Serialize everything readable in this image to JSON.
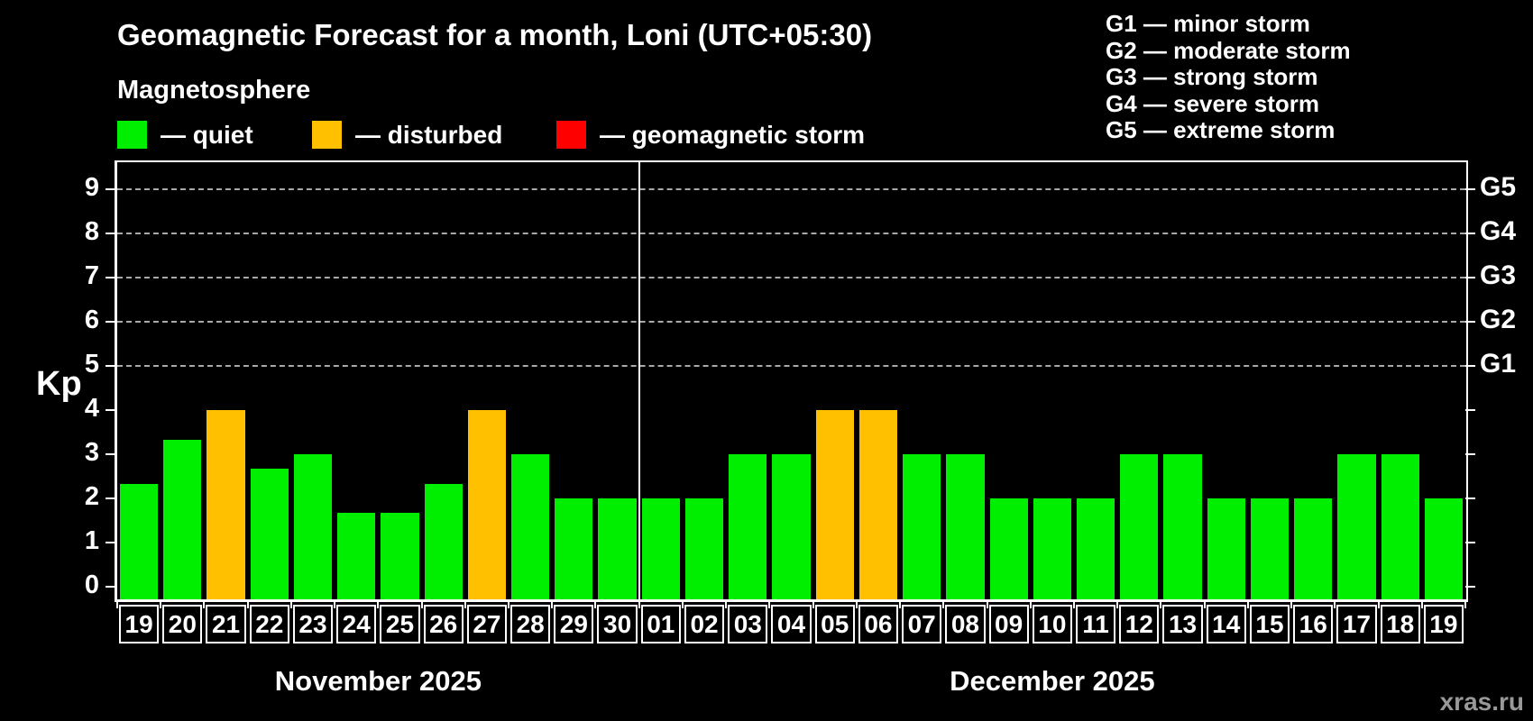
{
  "title": "Geomagnetic Forecast for a month, Loni (UTC+05:30)",
  "magnetosphere": {
    "heading": "Magnetosphere",
    "items": [
      {
        "label": "— quiet",
        "status": "quiet",
        "color": "#00ee00"
      },
      {
        "label": "— disturbed",
        "status": "disturbed",
        "color": "#ffc000"
      },
      {
        "label": "— geomagnetic storm",
        "status": "storm",
        "color": "#ff0000"
      }
    ]
  },
  "storm_scale_legend": {
    "lines": [
      "G1 — minor storm",
      "G2 — moderate storm",
      "G3 — strong storm",
      "G4 — severe storm",
      "G5 — extreme storm"
    ]
  },
  "watermark": "xras.ru",
  "chart_data": {
    "type": "bar",
    "title": "Geomagnetic Forecast for a month, Loni (UTC+05:30)",
    "ylabel": "Kp",
    "ylim": [
      0,
      9.5
    ],
    "yticks": [
      0,
      1,
      2,
      3,
      4,
      5,
      6,
      7,
      8,
      9
    ],
    "grid": "dashed horizontal gridlines at Kp 5-9",
    "legend_position": "top",
    "right_axis": [
      {
        "label": "G1",
        "kp": 5
      },
      {
        "label": "G2",
        "kp": 6
      },
      {
        "label": "G3",
        "kp": 7
      },
      {
        "label": "G4",
        "kp": 8
      },
      {
        "label": "G5",
        "kp": 9
      }
    ],
    "colors": {
      "quiet": "#00ee00",
      "disturbed": "#ffc000",
      "storm": "#ff0000"
    },
    "months": [
      {
        "label": "November 2025",
        "days": [
          {
            "date": "19",
            "kp": 2.33,
            "status": "quiet"
          },
          {
            "date": "20",
            "kp": 3.33,
            "status": "quiet"
          },
          {
            "date": "21",
            "kp": 4.0,
            "status": "disturbed"
          },
          {
            "date": "22",
            "kp": 2.67,
            "status": "quiet"
          },
          {
            "date": "23",
            "kp": 3.0,
            "status": "quiet"
          },
          {
            "date": "24",
            "kp": 1.67,
            "status": "quiet"
          },
          {
            "date": "25",
            "kp": 1.67,
            "status": "quiet"
          },
          {
            "date": "26",
            "kp": 2.33,
            "status": "quiet"
          },
          {
            "date": "27",
            "kp": 4.0,
            "status": "disturbed"
          },
          {
            "date": "28",
            "kp": 3.0,
            "status": "quiet"
          },
          {
            "date": "29",
            "kp": 2.0,
            "status": "quiet"
          },
          {
            "date": "30",
            "kp": 2.0,
            "status": "quiet"
          }
        ]
      },
      {
        "label": "December 2025",
        "days": [
          {
            "date": "01",
            "kp": 2.0,
            "status": "quiet"
          },
          {
            "date": "02",
            "kp": 2.0,
            "status": "quiet"
          },
          {
            "date": "03",
            "kp": 3.0,
            "status": "quiet"
          },
          {
            "date": "04",
            "kp": 3.0,
            "status": "quiet"
          },
          {
            "date": "05",
            "kp": 4.0,
            "status": "disturbed"
          },
          {
            "date": "06",
            "kp": 4.0,
            "status": "disturbed"
          },
          {
            "date": "07",
            "kp": 3.0,
            "status": "quiet"
          },
          {
            "date": "08",
            "kp": 3.0,
            "status": "quiet"
          },
          {
            "date": "09",
            "kp": 2.0,
            "status": "quiet"
          },
          {
            "date": "10",
            "kp": 2.0,
            "status": "quiet"
          },
          {
            "date": "11",
            "kp": 2.0,
            "status": "quiet"
          },
          {
            "date": "12",
            "kp": 3.0,
            "status": "quiet"
          },
          {
            "date": "13",
            "kp": 3.0,
            "status": "quiet"
          },
          {
            "date": "14",
            "kp": 2.0,
            "status": "quiet"
          },
          {
            "date": "15",
            "kp": 2.0,
            "status": "quiet"
          },
          {
            "date": "16",
            "kp": 2.0,
            "status": "quiet"
          },
          {
            "date": "17",
            "kp": 3.0,
            "status": "quiet"
          },
          {
            "date": "18",
            "kp": 3.0,
            "status": "quiet"
          },
          {
            "date": "19",
            "kp": 2.0,
            "status": "quiet"
          }
        ]
      }
    ]
  }
}
